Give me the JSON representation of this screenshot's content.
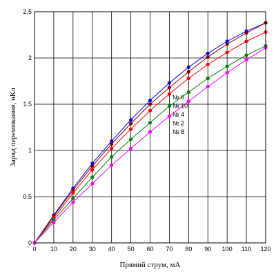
{
  "chart_data": {
    "type": "line",
    "title": "",
    "xlabel": "Прямий струм, мА",
    "ylabel": "Заряд перемикання, нКл",
    "xlim": [
      0,
      120
    ],
    "ylim": [
      0,
      2.5
    ],
    "grid": true,
    "x_ticks": [
      "0",
      "10",
      "20",
      "30",
      "40",
      "50",
      "60",
      "70",
      "80",
      "90",
      "100",
      "110",
      "120"
    ],
    "y_ticks": [
      "0",
      "0.5",
      "1",
      "1.5",
      "2",
      "2.5"
    ],
    "x": [
      0,
      10,
      20,
      30,
      40,
      50,
      60,
      70,
      80,
      90,
      100,
      110,
      120
    ],
    "legend": [
      "№ 6",
      "№ 10",
      "№ 4",
      "№ 2",
      "№ 8"
    ],
    "legend_position": "center",
    "series": [
      {
        "name": "№ 6",
        "color": "#0000ff",
        "values": [
          0,
          0.3,
          0.59,
          0.86,
          1.1,
          1.33,
          1.54,
          1.73,
          1.9,
          2.05,
          2.18,
          2.29,
          2.38
        ]
      },
      {
        "name": "№ 10",
        "color": "#800000",
        "values": [
          0,
          0.29,
          0.57,
          0.83,
          1.07,
          1.29,
          1.5,
          1.68,
          1.85,
          2.01,
          2.15,
          2.27,
          2.38
        ]
      },
      {
        "name": "№ 4",
        "color": "#ff0000",
        "values": [
          0,
          0.27,
          0.54,
          0.79,
          1.02,
          1.23,
          1.43,
          1.61,
          1.78,
          1.93,
          2.06,
          2.18,
          2.28
        ]
      },
      {
        "name": "№ 2",
        "color": "#008000",
        "values": [
          0,
          0.25,
          0.48,
          0.71,
          0.93,
          1.12,
          1.3,
          1.48,
          1.63,
          1.78,
          1.91,
          2.03,
          2.13
        ]
      },
      {
        "name": "№ 8",
        "color": "#ff00ff",
        "values": [
          0,
          0.22,
          0.44,
          0.64,
          0.84,
          1.02,
          1.2,
          1.37,
          1.53,
          1.69,
          1.84,
          1.98,
          2.11
        ]
      }
    ]
  }
}
